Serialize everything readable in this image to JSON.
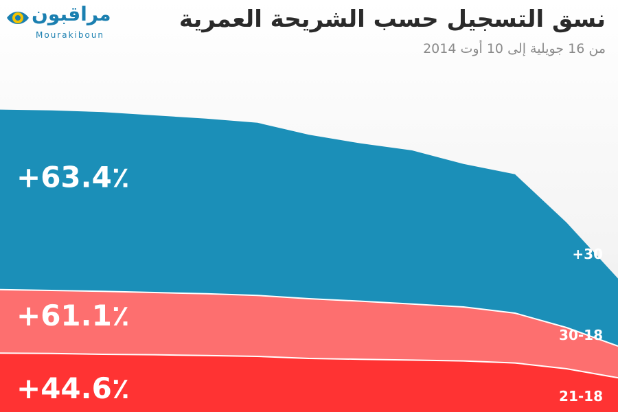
{
  "header": {
    "title": "نسق التسجيل حسب الشريحة العمرية",
    "subtitle": "من 16 جويلية إلى 10 أوت 2014"
  },
  "logo": {
    "arabic": "مراقبون",
    "latin": "Mourakiboun",
    "accent_color": "#1a7fb0",
    "eye_color": "#f5c400"
  },
  "chart_data": {
    "type": "area",
    "stacked": true,
    "y_unit": "%",
    "x_unit": "days from 16 July to 10 August 2014",
    "title": "نسق التسجيل حسب الشريحة العمرية",
    "subtitle": "من 16 جويلية إلى 10 أوت 2014",
    "series": [
      {
        "name": "21-18",
        "change_label": "+44.6٪",
        "color": "#ff3333",
        "values": [
          14.3,
          14.2,
          14.0,
          13.9,
          13.7,
          13.5,
          13.0,
          12.8,
          12.6,
          12.4,
          11.9,
          10.5,
          8.3
        ]
      },
      {
        "name": "30-18",
        "change_label": "+61.1٪",
        "color": "#fd6f6f",
        "values": [
          29.7,
          29.5,
          29.3,
          29.0,
          28.7,
          28.3,
          27.5,
          26.9,
          26.2,
          25.5,
          24.0,
          20.5,
          16.0
        ]
      },
      {
        "name": "+30",
        "change_label": "+63.4٪",
        "color": "#1b8fb8",
        "values": [
          73.4,
          73.2,
          72.8,
          72.0,
          71.2,
          70.2,
          67.3,
          65.2,
          63.5,
          60.2,
          57.7,
          46.0,
          32.4
        ]
      }
    ]
  }
}
